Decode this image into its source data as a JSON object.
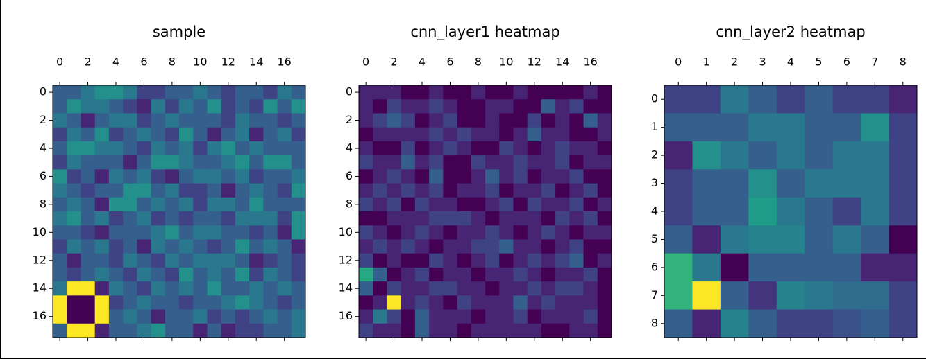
{
  "chart_data": [
    {
      "type": "heatmap",
      "title": "sample",
      "cmap": "viridis",
      "xlim": [
        -0.5,
        17.5
      ],
      "ylim": [
        17.5,
        -0.5
      ],
      "xticks": [
        0,
        2,
        4,
        6,
        8,
        10,
        12,
        14,
        16
      ],
      "yticks": [
        0,
        2,
        4,
        6,
        8,
        10,
        12,
        14,
        16
      ],
      "values": [
        [
          0.3,
          0.3,
          0.4,
          0.5,
          0.5,
          0.4,
          0.2,
          0.2,
          0.3,
          0.3,
          0.4,
          0.3,
          0.2,
          0.3,
          0.3,
          0.2,
          0.4,
          0.3
        ],
        [
          0.3,
          0.5,
          0.4,
          0.4,
          0.3,
          0.2,
          0.1,
          0.4,
          0.2,
          0.4,
          0.3,
          0.5,
          0.2,
          0.3,
          0.2,
          0.5,
          0.3,
          0.5
        ],
        [
          0.4,
          0.3,
          0.1,
          0.3,
          0.4,
          0.4,
          0.2,
          0.3,
          0.4,
          0.3,
          0.3,
          0.3,
          0.2,
          0.4,
          0.3,
          0.3,
          0.2,
          0.3
        ],
        [
          0.2,
          0.4,
          0.3,
          0.5,
          0.2,
          0.3,
          0.4,
          0.3,
          0.2,
          0.5,
          0.3,
          0.1,
          0.3,
          0.4,
          0.1,
          0.3,
          0.4,
          0.2
        ],
        [
          0.3,
          0.5,
          0.5,
          0.4,
          0.4,
          0.3,
          0.2,
          0.4,
          0.3,
          0.4,
          0.2,
          0.4,
          0.5,
          0.3,
          0.4,
          0.3,
          0.3,
          0.3
        ],
        [
          0.2,
          0.4,
          0.3,
          0.3,
          0.3,
          0.1,
          0.3,
          0.5,
          0.5,
          0.4,
          0.3,
          0.3,
          0.4,
          0.5,
          0.3,
          0.5,
          0.5,
          0.3
        ],
        [
          0.5,
          0.2,
          0.3,
          0.1,
          0.4,
          0.3,
          0.4,
          0.2,
          0.1,
          0.3,
          0.4,
          0.4,
          0.3,
          0.4,
          0.2,
          0.3,
          0.3,
          0.4
        ],
        [
          0.4,
          0.3,
          0.2,
          0.3,
          0.3,
          0.5,
          0.5,
          0.3,
          0.4,
          0.2,
          0.2,
          0.3,
          0.1,
          0.3,
          0.4,
          0.3,
          0.2,
          0.5
        ],
        [
          0.3,
          0.4,
          0.3,
          0.1,
          0.5,
          0.5,
          0.3,
          0.4,
          0.3,
          0.4,
          0.2,
          0.4,
          0.4,
          0.3,
          0.5,
          0.3,
          0.3,
          0.3
        ],
        [
          0.4,
          0.5,
          0.3,
          0.4,
          0.2,
          0.3,
          0.4,
          0.2,
          0.3,
          0.2,
          0.3,
          0.3,
          0.2,
          0.4,
          0.4,
          0.4,
          0.2,
          0.5
        ],
        [
          0.3,
          0.3,
          0.2,
          0.1,
          0.3,
          0.3,
          0.3,
          0.4,
          0.5,
          0.3,
          0.4,
          0.4,
          0.3,
          0.3,
          0.2,
          0.3,
          0.1,
          0.5
        ],
        [
          0.2,
          0.4,
          0.3,
          0.4,
          0.2,
          0.3,
          0.1,
          0.4,
          0.3,
          0.4,
          0.3,
          0.2,
          0.3,
          0.5,
          0.3,
          0.4,
          0.3,
          0.1
        ],
        [
          0.3,
          0.1,
          0.3,
          0.3,
          0.2,
          0.4,
          0.3,
          0.2,
          0.4,
          0.3,
          0.4,
          0.4,
          0.4,
          0.3,
          0.1,
          0.2,
          0.3,
          0.2
        ],
        [
          0.3,
          0.2,
          0.3,
          0.4,
          0.3,
          0.2,
          0.4,
          0.3,
          0.2,
          0.5,
          0.3,
          0.4,
          0.3,
          0.5,
          0.2,
          0.4,
          0.3,
          0.2
        ],
        [
          0.4,
          1,
          1,
          0.1,
          0.4,
          0.3,
          0.2,
          0.4,
          0.3,
          0.4,
          0.3,
          0.5,
          0.3,
          0.3,
          0.4,
          0.3,
          0.4,
          0.3
        ],
        [
          1,
          0,
          0,
          1,
          0.2,
          0.3,
          0.4,
          0.3,
          0.3,
          0.2,
          0.3,
          0.3,
          0.4,
          0.5,
          0.4,
          0.3,
          0.2,
          0.3
        ],
        [
          1,
          0,
          0,
          1,
          0.3,
          0.4,
          0.3,
          0.1,
          0.3,
          0.3,
          0.4,
          0.2,
          0.3,
          0.2,
          0.3,
          0.4,
          0.3,
          0.4
        ],
        [
          0.3,
          1,
          1,
          0.1,
          0.3,
          0.3,
          0.4,
          0.5,
          0.3,
          0.3,
          0.1,
          0.3,
          0.1,
          0.2,
          0.2,
          0.3,
          0.3,
          0.4
        ]
      ]
    },
    {
      "type": "heatmap",
      "title": "cnn_layer1 heatmap",
      "cmap": "viridis",
      "xlim": [
        -0.5,
        17.5
      ],
      "ylim": [
        17.5,
        -0.5
      ],
      "xticks": [
        0,
        2,
        4,
        6,
        8,
        10,
        12,
        14,
        16
      ],
      "yticks": [
        0,
        2,
        4,
        6,
        8,
        10,
        12,
        14,
        16
      ],
      "values": [
        [
          0.1,
          0.1,
          0.1,
          0,
          0,
          0.1,
          0,
          0,
          0.1,
          0,
          0,
          0.1,
          0,
          0,
          0,
          0,
          0.1,
          0
        ],
        [
          0.1,
          0,
          0.2,
          0.1,
          0.1,
          0.2,
          0.1,
          0,
          0,
          0.1,
          0.1,
          0,
          0,
          0.3,
          0.1,
          0.2,
          0,
          0
        ],
        [
          0.1,
          0.2,
          0.3,
          0.2,
          0,
          0.1,
          0.2,
          0,
          0,
          0.1,
          0,
          0,
          0.2,
          0,
          0.1,
          0,
          0.3,
          0.1
        ],
        [
          0,
          0.1,
          0.1,
          0.1,
          0.1,
          0.2,
          0.1,
          0.2,
          0.1,
          0.1,
          0,
          0.1,
          0.3,
          0.1,
          0.1,
          0,
          0,
          0.1
        ],
        [
          0.1,
          0,
          0,
          0.2,
          0,
          0.1,
          0.2,
          0.1,
          0,
          0,
          0.2,
          0.1,
          0,
          0.1,
          0.2,
          0.1,
          0.1,
          0
        ],
        [
          0.2,
          0.1,
          0.1,
          0.3,
          0.1,
          0.2,
          0,
          0,
          0.2,
          0.1,
          0.1,
          0.2,
          0.1,
          0.1,
          0.2,
          0,
          0.1,
          0.1
        ],
        [
          0,
          0.1,
          0.2,
          0.1,
          0,
          0.3,
          0,
          0,
          0.1,
          0.3,
          0.1,
          0.2,
          0,
          0.1,
          0.1,
          0.2,
          0,
          0
        ],
        [
          0.1,
          0.2,
          0.1,
          0.2,
          0.1,
          0.2,
          0,
          0.1,
          0.1,
          0.2,
          0,
          0.1,
          0.1,
          0.2,
          0,
          0.1,
          0.2,
          0
        ],
        [
          0.2,
          0.1,
          0.2,
          0,
          0.2,
          0.1,
          0.1,
          0,
          0,
          0.1,
          0.2,
          0,
          0.2,
          0.1,
          0.1,
          0.2,
          0,
          0.1
        ],
        [
          0,
          0,
          0.1,
          0.1,
          0.1,
          0.2,
          0.2,
          0.2,
          0.1,
          0,
          0.1,
          0.1,
          0.1,
          0,
          0.2,
          0.1,
          0.2,
          0
        ],
        [
          0.2,
          0.1,
          0,
          0.1,
          0.2,
          0.1,
          0,
          0.1,
          0.1,
          0.2,
          0.1,
          0,
          0.1,
          0.2,
          0.1,
          0,
          0.1,
          0.1
        ],
        [
          0.1,
          0.2,
          0.1,
          0.2,
          0.1,
          0,
          0.1,
          0.1,
          0.2,
          0.2,
          0.3,
          0.1,
          0.1,
          0,
          0.1,
          0.2,
          0,
          0
        ],
        [
          0.2,
          0,
          0.1,
          0,
          0,
          0.2,
          0.1,
          0,
          0.1,
          0.2,
          0,
          0.1,
          0.2,
          0.1,
          0.2,
          0.3,
          0,
          0.1
        ],
        [
          0.6,
          0.3,
          0,
          0.1,
          0.2,
          0,
          0.1,
          0.1,
          0,
          0.1,
          0.1,
          0.2,
          0.1,
          0,
          0.1,
          0.1,
          0.2,
          0
        ],
        [
          0.3,
          0,
          0.2,
          0.1,
          0.1,
          0.2,
          0.2,
          0.1,
          0.1,
          0,
          0.1,
          0.1,
          0.2,
          0.1,
          0.2,
          0.2,
          0.1,
          0
        ],
        [
          0,
          0.1,
          1,
          0.1,
          0.2,
          0.1,
          0,
          0.2,
          0.1,
          0.1,
          0.1,
          0.3,
          0.1,
          0.2,
          0.1,
          0.1,
          0.1,
          0
        ],
        [
          0.1,
          0.4,
          0.2,
          0,
          0.3,
          0.1,
          0.1,
          0.1,
          0,
          0.1,
          0.1,
          0.2,
          0,
          0.1,
          0.1,
          0.1,
          0.2,
          0
        ],
        [
          0.2,
          0.1,
          0.1,
          0,
          0.3,
          0.1,
          0.1,
          0,
          0.1,
          0.1,
          0.1,
          0.1,
          0.1,
          0,
          0,
          0.1,
          0.1,
          0
        ]
      ]
    },
    {
      "type": "heatmap",
      "title": "cnn_layer2 heatmap",
      "cmap": "viridis",
      "xlim": [
        -0.5,
        8.5
      ],
      "ylim": [
        8.5,
        -0.5
      ],
      "xticks": [
        0,
        1,
        2,
        3,
        4,
        5,
        6,
        7,
        8
      ],
      "yticks": [
        0,
        1,
        2,
        3,
        4,
        5,
        6,
        7,
        8
      ],
      "values": [
        [
          0.2,
          0.2,
          0.4,
          0.3,
          0.2,
          0.3,
          0.2,
          0.2,
          0.1
        ],
        [
          0.3,
          0.3,
          0.3,
          0.4,
          0.4,
          0.3,
          0.3,
          0.5,
          0.2
        ],
        [
          0.1,
          0.5,
          0.4,
          0.3,
          0.4,
          0.3,
          0.4,
          0.4,
          0.2
        ],
        [
          0.2,
          0.3,
          0.3,
          0.5,
          0.3,
          0.4,
          0.4,
          0.4,
          0.2
        ],
        [
          0.2,
          0.3,
          0.3,
          0.55,
          0.4,
          0.3,
          0.2,
          0.4,
          0.2
        ],
        [
          0.3,
          0.1,
          0.4,
          0.45,
          0.45,
          0.3,
          0.4,
          0.3,
          0
        ],
        [
          0.65,
          0.4,
          0,
          0.3,
          0.3,
          0.3,
          0.3,
          0.1,
          0.1
        ],
        [
          0.65,
          1,
          0.3,
          0.15,
          0.45,
          0.4,
          0.35,
          0.35,
          0.2
        ],
        [
          0.3,
          0.1,
          0.45,
          0.3,
          0.2,
          0.2,
          0.25,
          0.3,
          0.2
        ]
      ]
    }
  ]
}
